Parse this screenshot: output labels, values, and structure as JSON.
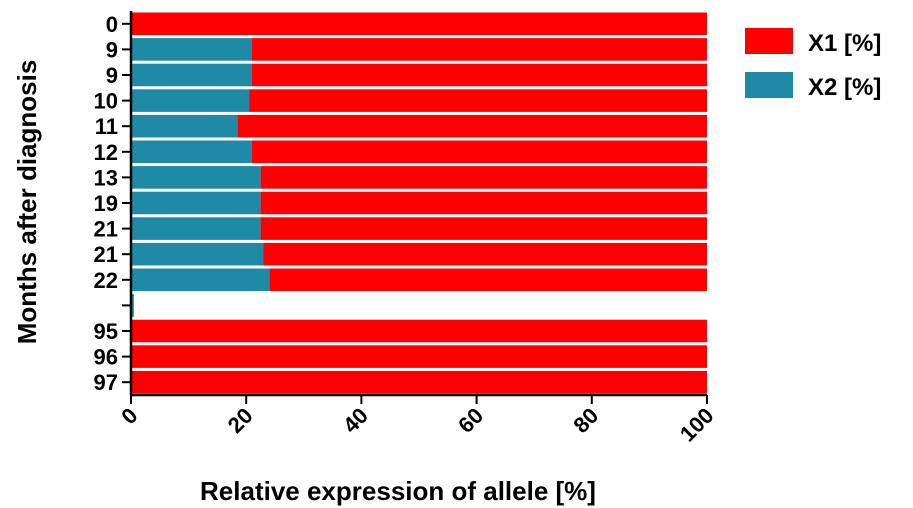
{
  "chart_data": {
    "type": "bar",
    "orientation": "horizontal",
    "stacked": true,
    "title": "",
    "xlabel": "Relative expression of allele  [%]",
    "ylabel": "Months after diagnosis",
    "xlim": [
      0,
      100
    ],
    "xticks": [
      "0",
      "20",
      "40",
      "60",
      "80",
      "100"
    ],
    "categories": [
      "0",
      "9",
      "9",
      "10",
      "11",
      "12",
      "13",
      "19",
      "21",
      "21",
      "22",
      "",
      "95",
      "96",
      "97"
    ],
    "series": [
      {
        "name": "X2 [%]",
        "color": "#1f8aa6",
        "values": [
          0,
          21,
          21,
          20.5,
          18.5,
          21,
          22.5,
          22.5,
          22.5,
          23,
          24,
          0.5,
          0,
          0,
          0
        ]
      },
      {
        "name": "X1 [%]",
        "color": "#ff0000",
        "values": [
          100,
          79,
          79,
          79.5,
          81.5,
          79,
          77.5,
          77.5,
          77.5,
          77,
          76,
          0,
          100,
          100,
          100
        ]
      }
    ],
    "legend": [
      {
        "label": "X1 [%]",
        "color": "#ff0000"
      },
      {
        "label": "X2 [%]",
        "color": "#1f8aa6"
      }
    ],
    "legend_position": "top-right",
    "grid": false
  }
}
